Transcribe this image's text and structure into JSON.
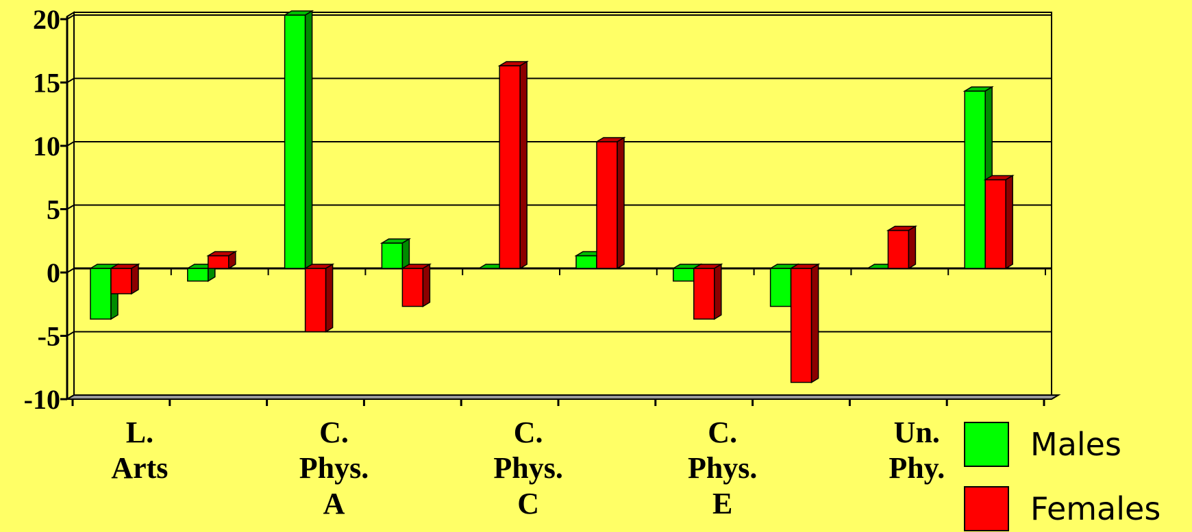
{
  "chart_data": {
    "type": "bar",
    "categories": [
      "",
      "",
      "",
      "",
      "",
      "",
      "",
      "",
      "",
      ""
    ],
    "category_labels": [
      {
        "index": 0,
        "lines": [
          "L.",
          "Arts"
        ]
      },
      {
        "index": 2,
        "lines": [
          "C.",
          "Phys.",
          "A"
        ]
      },
      {
        "index": 4,
        "lines": [
          "C.",
          "Phys.",
          "C"
        ]
      },
      {
        "index": 6,
        "lines": [
          "C.",
          "Phys.",
          "E"
        ]
      },
      {
        "index": 8,
        "lines": [
          "Un.",
          "Phy."
        ]
      }
    ],
    "series": [
      {
        "name": "Males",
        "color": "#00FF00",
        "values": [
          -4,
          -1,
          20,
          2,
          0,
          1,
          -1,
          -3,
          0,
          14
        ]
      },
      {
        "name": "Females",
        "color": "#FF0000",
        "values": [
          -2,
          1,
          -5,
          -3,
          16,
          10,
          -4,
          -9,
          3,
          7
        ]
      }
    ],
    "ylim": [
      -10,
      20
    ],
    "yticks": [
      20,
      15,
      10,
      5,
      0,
      -5,
      -10
    ],
    "title": "",
    "xlabel": "",
    "ylabel": "",
    "grid": true,
    "legend_position": "bottom-right",
    "style": "3d-bar"
  }
}
